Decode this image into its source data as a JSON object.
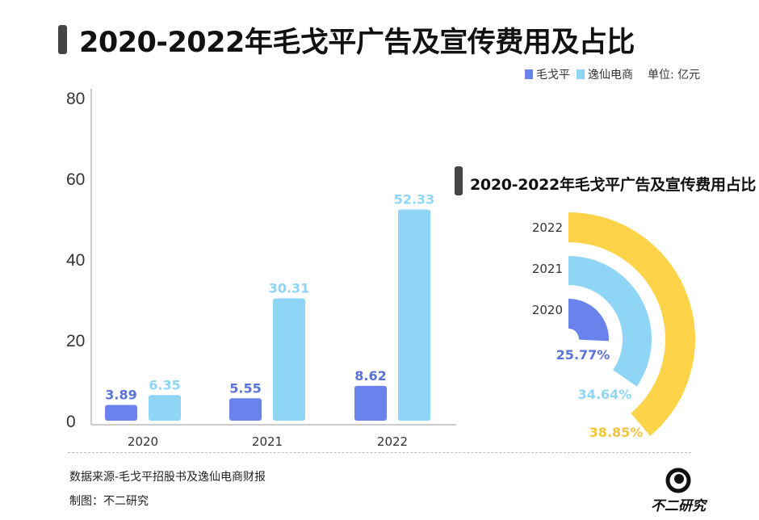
{
  "title": "2020-2022年毛戈平广告及宣传费用及占比",
  "legend": {
    "unit": "单位: 亿元"
  },
  "colors": {
    "maogeping": "#6a82ec",
    "yixian": "#8fd6f6",
    "y2022": "#fdd34a",
    "title_bar": "#444444"
  },
  "chart_data": [
    {
      "type": "bar",
      "categories": [
        "2020",
        "2021",
        "2022"
      ],
      "series": [
        {
          "name": "毛戈平",
          "values": [
            3.89,
            5.55,
            8.62
          ],
          "color": "#6a82ec",
          "label_color": "#5b72d6"
        },
        {
          "name": "逸仙电商",
          "values": [
            6.35,
            30.31,
            52.33
          ],
          "color": "#8fd6f6",
          "label_color": "#8fd6f6"
        }
      ],
      "yticks": [
        0,
        20,
        40,
        60,
        80
      ],
      "ylim": [
        0,
        80
      ],
      "grid": false,
      "legend_position": "top-right"
    },
    {
      "type": "radial-bar",
      "title": "2020-2022年毛戈平广告及宣传费用占比",
      "categories": [
        "2020",
        "2021",
        "2022"
      ],
      "values": [
        25.77,
        34.64,
        38.85
      ],
      "labels": [
        "25.77%",
        "34.64%",
        "38.85%"
      ],
      "colors": [
        "#6a82ec",
        "#8fd6f6",
        "#fdd34a"
      ],
      "label_colors": [
        "#5b72d6",
        "#8fd6f6",
        "#f3c53c"
      ],
      "unit": "%"
    }
  ],
  "footer": {
    "source": "数据来源-毛戈平招股书及逸仙电商财报",
    "maker": "制图：不二研究",
    "logo_text": "不二研究"
  }
}
